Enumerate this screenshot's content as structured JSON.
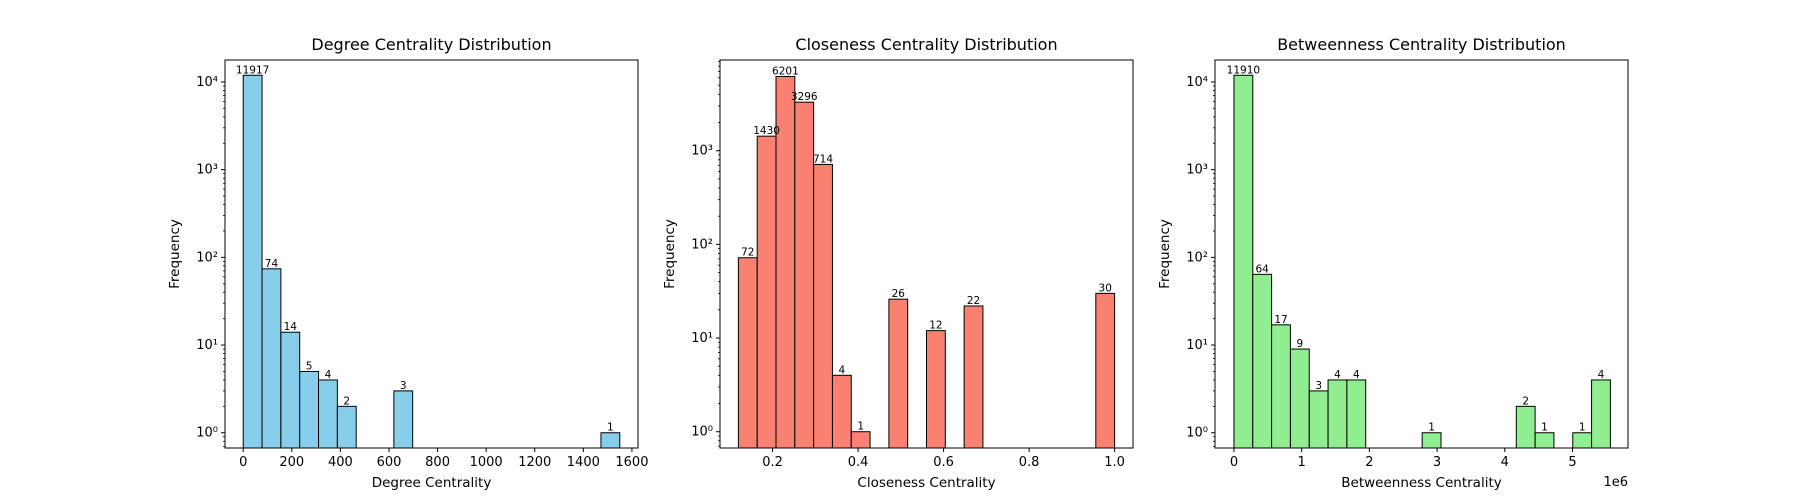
{
  "colors": {
    "degree": "#87ceeb",
    "closeness": "#fa8072",
    "betweenness": "#90ee90",
    "edge": "#000000"
  },
  "chart_data": [
    {
      "type": "bar",
      "title": "Degree Centrality Distribution",
      "xlabel": "Degree Centrality",
      "ylabel": "Frequency",
      "y_scale": "log",
      "xlim": [
        -75,
        1625
      ],
      "ylim": [
        0.67,
        17800
      ],
      "x_ticks": [
        0,
        200,
        400,
        600,
        800,
        1000,
        1200,
        1400,
        1600
      ],
      "x_tick_labels": [
        "0",
        "200",
        "400",
        "600",
        "800",
        "1000",
        "1200",
        "1400",
        "1600"
      ],
      "x_offset_label": "",
      "y_ticks": [
        1,
        10,
        100,
        1000,
        10000
      ],
      "y_tick_labels": [
        "10⁰",
        "10¹",
        "10²",
        "10³",
        "10⁴"
      ],
      "bins": [
        {
          "x0": 0,
          "x1": 77.5,
          "count": 11917,
          "label": "11917"
        },
        {
          "x0": 77.5,
          "x1": 155,
          "count": 74,
          "label": "74"
        },
        {
          "x0": 155,
          "x1": 232.5,
          "count": 14,
          "label": "14"
        },
        {
          "x0": 232.5,
          "x1": 310,
          "count": 5,
          "label": "5"
        },
        {
          "x0": 310,
          "x1": 387.5,
          "count": 4,
          "label": "4"
        },
        {
          "x0": 387.5,
          "x1": 465,
          "count": 2,
          "label": "2"
        },
        {
          "x0": 620,
          "x1": 697.5,
          "count": 3,
          "label": "3"
        },
        {
          "x0": 1472.5,
          "x1": 1550,
          "count": 1,
          "label": "1"
        }
      ]
    },
    {
      "type": "bar",
      "title": "Closeness Centrality Distribution",
      "xlabel": "Closeness Centrality",
      "ylabel": "Frequency",
      "y_scale": "log",
      "xlim": [
        0.077,
        1.043
      ],
      "ylim": [
        0.67,
        9300
      ],
      "x_ticks": [
        0.2,
        0.4,
        0.6,
        0.8,
        1.0
      ],
      "x_tick_labels": [
        "0.2",
        "0.4",
        "0.6",
        "0.8",
        "1.0"
      ],
      "x_offset_label": "",
      "y_ticks": [
        1,
        10,
        100,
        1000
      ],
      "y_tick_labels": [
        "10⁰",
        "10¹",
        "10²",
        "10³"
      ],
      "bins": [
        {
          "x0": 0.12,
          "x1": 0.164,
          "count": 72,
          "label": "72"
        },
        {
          "x0": 0.164,
          "x1": 0.208,
          "count": 1430,
          "label": "1430"
        },
        {
          "x0": 0.208,
          "x1": 0.252,
          "count": 6201,
          "label": "6201"
        },
        {
          "x0": 0.252,
          "x1": 0.296,
          "count": 3296,
          "label": "3296"
        },
        {
          "x0": 0.296,
          "x1": 0.34,
          "count": 714,
          "label": "714"
        },
        {
          "x0": 0.34,
          "x1": 0.384,
          "count": 4,
          "label": "4"
        },
        {
          "x0": 0.384,
          "x1": 0.428,
          "count": 1,
          "label": "1"
        },
        {
          "x0": 0.472,
          "x1": 0.516,
          "count": 26,
          "label": "26"
        },
        {
          "x0": 0.56,
          "x1": 0.604,
          "count": 12,
          "label": "12"
        },
        {
          "x0": 0.648,
          "x1": 0.692,
          "count": 22,
          "label": "22"
        },
        {
          "x0": 0.956,
          "x1": 1.0,
          "count": 30,
          "label": "30"
        }
      ]
    },
    {
      "type": "bar",
      "title": "Betweenness Centrality Distribution",
      "xlabel": "Betweenness Centrality",
      "ylabel": "Frequency",
      "y_scale": "log",
      "xlim": [
        -0.28,
        5.82
      ],
      "ylim": [
        0.67,
        17800
      ],
      "x_ticks": [
        0,
        1,
        2,
        3,
        4,
        5
      ],
      "x_tick_labels": [
        "0",
        "1",
        "2",
        "3",
        "4",
        "5"
      ],
      "x_offset_label": "1e6",
      "y_ticks": [
        1,
        10,
        100,
        1000,
        10000
      ],
      "y_tick_labels": [
        "10⁰",
        "10¹",
        "10²",
        "10³",
        "10⁴"
      ],
      "bins": [
        {
          "x0": 0,
          "x1": 0.278,
          "count": 11910,
          "label": "11910"
        },
        {
          "x0": 0.278,
          "x1": 0.556,
          "count": 64,
          "label": "64"
        },
        {
          "x0": 0.556,
          "x1": 0.834,
          "count": 17,
          "label": "17"
        },
        {
          "x0": 0.834,
          "x1": 1.112,
          "count": 9,
          "label": "9"
        },
        {
          "x0": 1.112,
          "x1": 1.39,
          "count": 3,
          "label": "3"
        },
        {
          "x0": 1.39,
          "x1": 1.668,
          "count": 4,
          "label": "4"
        },
        {
          "x0": 1.668,
          "x1": 1.946,
          "count": 4,
          "label": "4"
        },
        {
          "x0": 2.78,
          "x1": 3.058,
          "count": 1,
          "label": "1"
        },
        {
          "x0": 4.17,
          "x1": 4.448,
          "count": 2,
          "label": "2"
        },
        {
          "x0": 4.448,
          "x1": 4.726,
          "count": 1,
          "label": "1"
        },
        {
          "x0": 5.004,
          "x1": 5.282,
          "count": 1,
          "label": "1"
        },
        {
          "x0": 5.282,
          "x1": 5.56,
          "count": 4,
          "label": "4"
        }
      ]
    }
  ]
}
